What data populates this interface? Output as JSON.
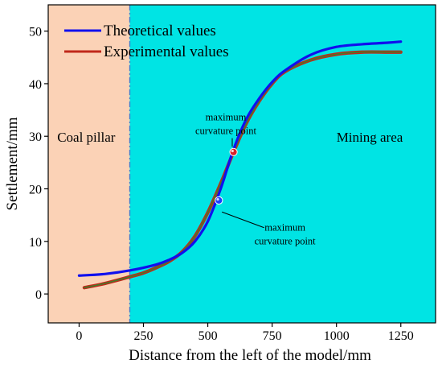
{
  "chart_data": {
    "type": "line",
    "xlabel": "Distance from the left of the model/mm",
    "ylabel": "Settlement/mm",
    "xlim": [
      -120,
      1385
    ],
    "ylim": [
      -5.5,
      55
    ],
    "xticks": [
      0,
      250,
      500,
      750,
      1000,
      1250
    ],
    "yticks": [
      0,
      10,
      20,
      30,
      40,
      50
    ],
    "grid": false,
    "legend_position": "top-left",
    "regions": [
      {
        "label": "Coal pillar",
        "x_start": -120,
        "x_end": 197,
        "color": "#fbd2b6",
        "label_pos": [
          -85,
          29
        ]
      },
      {
        "label": "Mining area",
        "x_start": 197,
        "x_end": 1385,
        "color": "#00e4e4",
        "label_pos": [
          1000,
          29
        ]
      }
    ],
    "boundary_x": 197,
    "series": [
      {
        "name": "Theoretical values",
        "color": "#1010ee",
        "x": [
          0,
          100,
          200,
          300,
          350,
          400,
          450,
          500,
          550,
          600,
          650,
          700,
          750,
          800,
          900,
          1000,
          1100,
          1200,
          1250
        ],
        "y": [
          3.5,
          3.8,
          4.5,
          5.6,
          6.5,
          7.8,
          10.0,
          13.8,
          20.0,
          27.5,
          33.3,
          37.2,
          40.3,
          42.5,
          45.5,
          47.0,
          47.5,
          47.8,
          48.0
        ]
      },
      {
        "name": "Experimental values",
        "color": "#c0281a",
        "x": [
          20,
          100,
          200,
          250,
          300,
          350,
          400,
          450,
          500,
          550,
          600,
          650,
          700,
          750,
          800,
          900,
          1000,
          1100,
          1200,
          1250
        ],
        "y": [
          1.2,
          2.0,
          3.3,
          4.0,
          5.0,
          6.2,
          8.0,
          11.0,
          15.5,
          21.0,
          27.0,
          32.5,
          36.7,
          40.0,
          42.3,
          44.5,
          45.6,
          46.0,
          46.0,
          46.0
        ]
      }
    ],
    "markers": [
      {
        "x": 600,
        "y": 27.0,
        "color": "#d8222a",
        "label": "maximum\ncurvature point",
        "label_pos": [
          570,
          33.0
        ],
        "line_to": [
          595,
          28.0
        ]
      },
      {
        "x": 543,
        "y": 17.8,
        "color": "#1a3cff",
        "label": "maximum\ncurvature point",
        "label_pos": [
          800,
          12.0
        ],
        "line_to": [
          555,
          15.6
        ]
      }
    ]
  }
}
